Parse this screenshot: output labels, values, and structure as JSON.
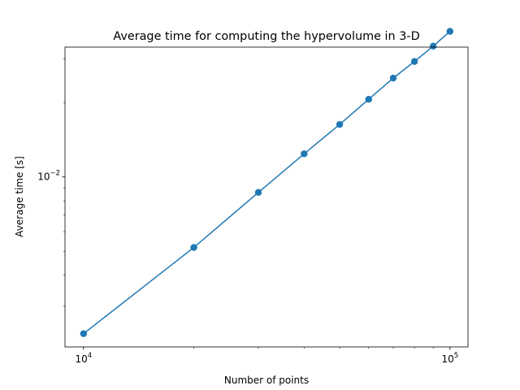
{
  "chart_data": {
    "type": "line",
    "title": "Average time for computing the hypervolume in 3-D",
    "xlabel": "Number of points",
    "ylabel": "Average time [s]",
    "xscale": "log",
    "yscale": "log",
    "xlim": [
      8900,
      112000
    ],
    "ylim": [
      0.00205,
      0.0335
    ],
    "grid": false,
    "legend": "none",
    "x_ticks": [
      {
        "value": 10000,
        "base": "10",
        "exp": "4"
      },
      {
        "value": 100000,
        "base": "10",
        "exp": "5"
      }
    ],
    "y_ticks": [
      {
        "value": 0.01,
        "base": "10",
        "exp": "−2"
      }
    ],
    "x_minor_ticks": [
      20000,
      30000,
      40000,
      50000,
      60000,
      70000,
      80000,
      90000
    ],
    "y_minor_ticks": [
      0.003,
      0.004,
      0.005,
      0.006,
      0.007,
      0.008,
      0.009,
      0.02,
      0.03
    ],
    "series": [
      {
        "color": "#1f77b4",
        "marker": "circle",
        "x": [
          10000,
          20000,
          30000,
          40000,
          50000,
          60000,
          70000,
          80000,
          90000,
          100000
        ],
        "y": [
          0.00232,
          0.00518,
          0.00865,
          0.0124,
          0.0163,
          0.0206,
          0.0251,
          0.0293,
          0.0338,
          0.0388
        ]
      }
    ]
  }
}
